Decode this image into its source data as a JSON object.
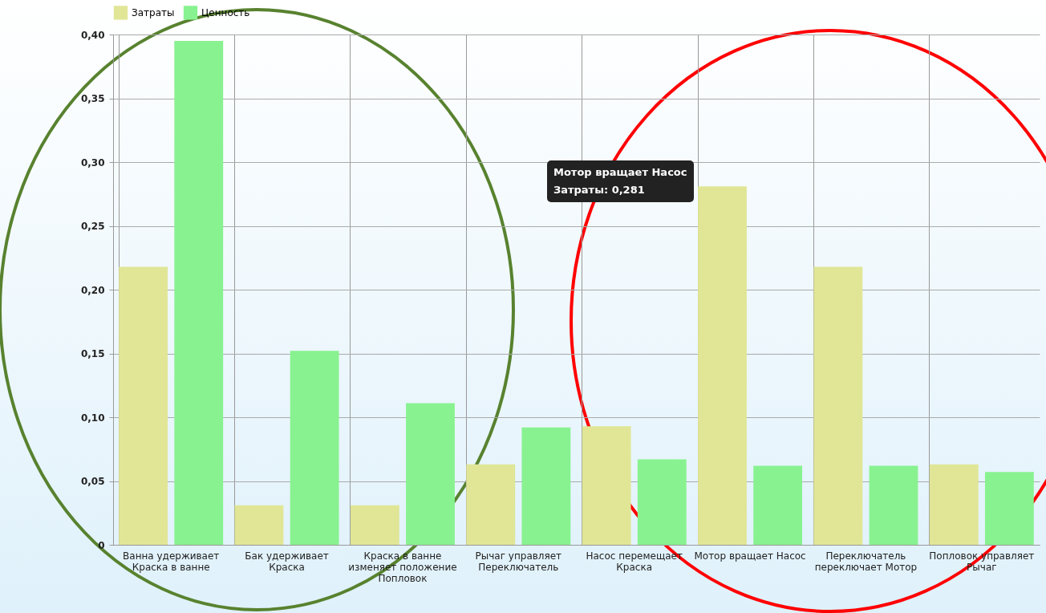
{
  "chart_data": {
    "type": "bar",
    "categories": [
      "Ванна удерживает Краска в ванне",
      "Бак удерживает Краска",
      "Краска в ванне изменяет положение Попловок",
      "Рычаг управляет Переключатель",
      "Насос перемещает Краска",
      "Мотор вращает Насос",
      "Переключатель переключает Мотор",
      "Попловок управляет Рычаг"
    ],
    "series": [
      {
        "name": "Затраты",
        "color": "#e0e696",
        "values": [
          0.218,
          0.031,
          0.031,
          0.063,
          0.093,
          0.281,
          0.218,
          0.063
        ]
      },
      {
        "name": "Ценность",
        "color": "#88f290",
        "values": [
          0.395,
          0.152,
          0.111,
          0.092,
          0.067,
          0.062,
          0.062,
          0.057
        ]
      }
    ],
    "ylim": [
      0,
      0.4
    ],
    "yticks": [
      0,
      {
        "value": 0.05,
        "label": "0,05"
      },
      {
        "value": 0.1,
        "label": "0,10"
      },
      {
        "value": 0.15,
        "label": "0,15"
      },
      {
        "value": 0.2,
        "label": "0,20"
      },
      {
        "value": 0.25,
        "label": "0,25"
      },
      {
        "value": 0.3,
        "label": "0,30"
      },
      {
        "value": 0.35,
        "label": "0,35"
      },
      {
        "value": 0.4,
        "label": "0,40"
      }
    ],
    "grid": true,
    "legend": "top",
    "annotations": [
      "Мотор вращает Насос",
      "Затраты: 0,281"
    ]
  }
}
